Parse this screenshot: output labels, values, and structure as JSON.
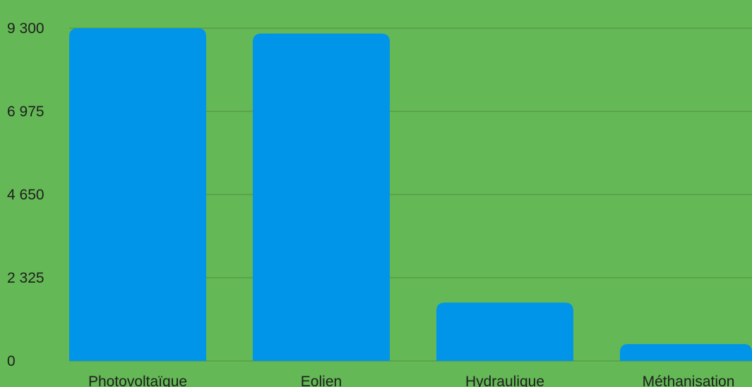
{
  "chart_data": {
    "type": "bar",
    "categories": [
      "Photovoltaïque",
      "Eolien",
      "Hydraulique",
      "Méthanisation"
    ],
    "values": [
      9300,
      9150,
      1630,
      470
    ],
    "title": "",
    "xlabel": "",
    "ylabel": "",
    "ylim": [
      0,
      9300
    ],
    "yticks": [
      0,
      2325,
      4650,
      6975,
      9300
    ],
    "ytick_labels": [
      "0",
      "2 325",
      "4 650",
      "6 975",
      "9 300"
    ],
    "grid": true,
    "legend": "none"
  },
  "colors": {
    "background": "#64b855",
    "bar": "#0095e8",
    "grid": "#4f8f44",
    "text": "#1f1f1f"
  }
}
